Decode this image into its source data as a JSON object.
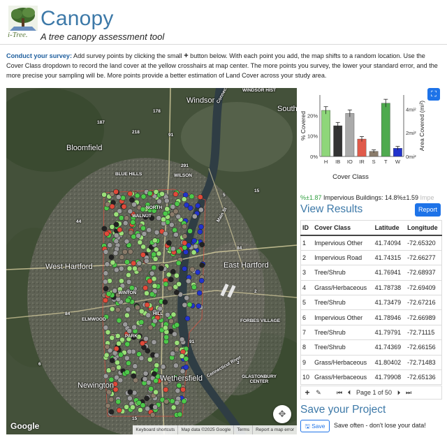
{
  "header": {
    "title": "Canopy",
    "subtitle": "A tree canopy assessment tool",
    "logo_text": "i-Tree."
  },
  "instructions": {
    "lead": "Conduct your survey:",
    "part1": " Add survey points by clicking the small ",
    "plus": "+",
    "part2": " button below. With each point you add, the map shifts to a random location. Use the Cover Class dropdown to record the land cover at the yellow crosshairs at map center. The more points you survey, the lower your standard error, and the more precise your sampling will be. More points provide a better estimation of Land Cover across your study area."
  },
  "map": {
    "labels": {
      "windsor": "Windsor",
      "south": "South",
      "windsor_hist": "WINDSOR HIST",
      "bloomfield": "Bloomfield",
      "blue_hills": "BLUE HILLS",
      "wilson": "WILSON",
      "west_hartford": "West Hartford",
      "east_hartford": "East Hartford",
      "elmwood": "ELMWOOD",
      "forbes_village": "FORBES VILLAGE",
      "wethersfield": "Wethersfield",
      "newington": "Newington",
      "glastonbury": "GLASTONBURY CENTER",
      "connecticut_river": "Connecticut River",
      "connecticut_river_2": "Connecticut River",
      "route_291": "291",
      "route_91": "91",
      "route_91b": "91",
      "route_44": "44",
      "route_84": "84",
      "route_84b": "84",
      "route_2": "2",
      "route_5": "5",
      "route_3": "3",
      "route_6": "6",
      "route_15": "15",
      "route_187": "187",
      "route_218": "218",
      "route_178": "178",
      "route_15b": "15",
      "main_st": "Main St",
      "city_labels": [
        "WALNUT",
        "NORTH",
        "WINTON",
        "HILL",
        "PARK"
      ]
    },
    "google": "Google",
    "footer": [
      "Keyboard shortcuts",
      "Map data ©2025 Google",
      "Terms",
      "Report a map error"
    ],
    "point_colors": {
      "tree": "#4dc94a",
      "grass": "#9be07a",
      "impervious_other": "#9a9a9a",
      "impervious_road": "#222222",
      "impervious_building": "#e04a3a",
      "water": "#2233cc",
      "soil": "#8a7b6a"
    }
  },
  "chart_data": {
    "type": "bar",
    "categories": [
      "H",
      "IB",
      "IO",
      "IR",
      "S",
      "T",
      "W"
    ],
    "values": [
      22.5,
      15,
      21,
      8.5,
      2.5,
      26,
      4
    ],
    "errors": [
      1.8,
      1.6,
      1.7,
      1.2,
      0.7,
      1.9,
      0.9
    ],
    "colors": [
      "#8ed67a",
      "#333333",
      "#aaaaaa",
      "#e05a4a",
      "#8a7b6a",
      "#4faa4f",
      "#2233cc"
    ],
    "xlabel": "Cover Class",
    "ylabel": "% Covered",
    "ylabel2": "Area Covered (mi²)",
    "ylim": [
      0,
      30
    ],
    "yticks": [
      "0%",
      "10%",
      "20%"
    ],
    "yticks2": [
      "0mi²",
      "2mi²",
      "4mi²"
    ]
  },
  "summary": {
    "prefix": "%±1.87",
    "text": " Impervious Buildings: 14.8%±1.59 ",
    "suffix": "Impe"
  },
  "results": {
    "title": "View Results",
    "report_label": "Report",
    "columns": [
      "ID",
      "Cover Class",
      "Latitude",
      "Longitude"
    ],
    "rows": [
      [
        "1",
        "Impervious Other",
        "41.74094",
        "-72.65320"
      ],
      [
        "2",
        "Impervious Road",
        "41.74315",
        "-72.66277"
      ],
      [
        "3",
        "Tree/Shrub",
        "41.76941",
        "-72.68937"
      ],
      [
        "4",
        "Grass/Herbaceous",
        "41.78738",
        "-72.69409"
      ],
      [
        "5",
        "Tree/Shrub",
        "41.73479",
        "-72.67216"
      ],
      [
        "6",
        "Impervious Other",
        "41.78946",
        "-72.66989"
      ],
      [
        "7",
        "Tree/Shrub",
        "41.79791",
        "-72.71115"
      ],
      [
        "8",
        "Tree/Shrub",
        "41.74369",
        "-72.66156"
      ],
      [
        "9",
        "Grass/Herbaceous",
        "41.80402",
        "-72.71483"
      ],
      [
        "10",
        "Grass/Herbaceous",
        "41.79908",
        "-72.65136"
      ]
    ],
    "pager": {
      "add": "+",
      "edit": "✎",
      "first": "⏮",
      "prev": "⏴",
      "page_text": "Page 1 of 50",
      "next": "⏵",
      "last": "⏭"
    }
  },
  "save": {
    "title": "Save your Project",
    "button_label": "Save",
    "note": "Save often - don't lose your data!"
  }
}
